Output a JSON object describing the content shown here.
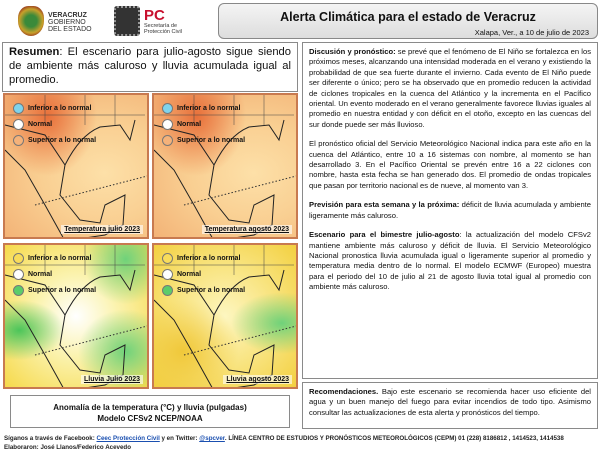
{
  "header": {
    "gov_logo_text": [
      "VERACRUZ",
      "GOBIERNO",
      "DEL ESTADO"
    ],
    "pc_logo": "PC",
    "pc_sub": [
      "Secretaría de",
      "Protección Civil"
    ],
    "title": "Alerta Climática para el estado de Veracruz",
    "date": "Xalapa, Ver., a 10 de julio de 2023"
  },
  "resumen": {
    "label": "Resumen",
    "text": ": El escenario para julio-agosto sigue siendo de ambiente más caluroso y lluvia acumulada igual al promedio."
  },
  "maps": [
    {
      "label": "Temperatura julio 2023",
      "type": "temp"
    },
    {
      "label": "Temperatura agosto 2023",
      "type": "temp"
    },
    {
      "label": "Lluvia Julio 2023",
      "type": "rain"
    },
    {
      "label": "Lluvia agosto 2023",
      "type": "rain"
    }
  ],
  "legend_temp": [
    {
      "label": "Inferior a lo normal",
      "color": "#7fd3ec"
    },
    {
      "label": "Normal",
      "color": "#ffffff"
    },
    {
      "label": "Superior a lo normal",
      "color": "#f5b27a"
    }
  ],
  "legend_rain": [
    {
      "label": "Inferior a lo normal",
      "color": "#f8dc5a"
    },
    {
      "label": "Normal",
      "color": "#ffffff"
    },
    {
      "label": "Superior a lo normal",
      "color": "#5ccc6a"
    }
  ],
  "caption": {
    "line1": "Anomalía de la temperatura (°C) y lluvia (pulgadas)",
    "line2": "Modelo CFSv2 NCEP/NOAA"
  },
  "discussion": {
    "label": "Discusión y pronóstico:",
    "text": " se prevé que el fenómeno de El Niño se fortalezca en los próximos meses, alcanzando una intensidad moderada en el verano y existiendo la probabilidad de que sea fuerte durante el invierno. Cada evento de El Niño puede ser diferente o único; pero se ha observado que en promedio reducen la actividad de ciclones tropicales en la cuenca del Atlántico y la incrementa en el Pacífico oriental. Un evento moderado en el verano generalmente favorece lluvias iguales al promedio en nuestra entidad y con déficit en el otoño, excepto en las cuencas del sur donde puede ser más lluvioso.",
    "para2": "El pronóstico oficial del Servicio Meteorológico Nacional indica para este año en la cuenca del Atlántico, entre 10 a 16 sistemas con nombre, al momento se han desarrollado 3. En el Pacífico Oriental se prevén entre 16 a 22 ciclones con nombre, hasta esta fecha se han generado dos. El promedio de ondas tropicales que pasan por territorio nacional es de nueve, al momento van 3."
  },
  "prevision": {
    "label": "Previsión para esta semana y la próxima:",
    "text": " déficit de lluvia acumulada y ambiente ligeramente más caluroso."
  },
  "escenario": {
    "label": "Escenario para el bimestre julio-agosto",
    "text": ": la actualización del modelo CFSv2 mantiene ambiente más caluroso y déficit de lluvia. El Servicio Meteorológico Nacional pronostica lluvia acumulada igual o ligeramente superior al promedio y temperatura media dentro de lo normal. El modelo ECMWF (Europeo) muestra para el periodo del 10 de julio al 21 de agosto lluvia total igual al promedio con ambiente más caluroso."
  },
  "recomendaciones": {
    "label": "Recomendaciones.",
    "text": " Bajo este escenario se recomienda hacer uso eficiente del agua y un buen manejo del fuego para evitar incendios de todo tipo. Asimismo consultar las actualizaciones de esta alerta y pronósticos del tiempo."
  },
  "footer": {
    "prefix": "Síganos a través de Facebook: ",
    "facebook": "Ceec Protección Civil",
    "mid": " y en Twitter: ",
    "twitter": "@spcver",
    "rest": ". LÍNEA CENTRO DE ESTUDIOS Y PRONÓSTICOS METEOROLÓGICOS (CEPM)  01 (228) 8186812 , 1414523, 1414538",
    "line2": "Elaboraron: José Llanos/Federico Acevedo"
  }
}
